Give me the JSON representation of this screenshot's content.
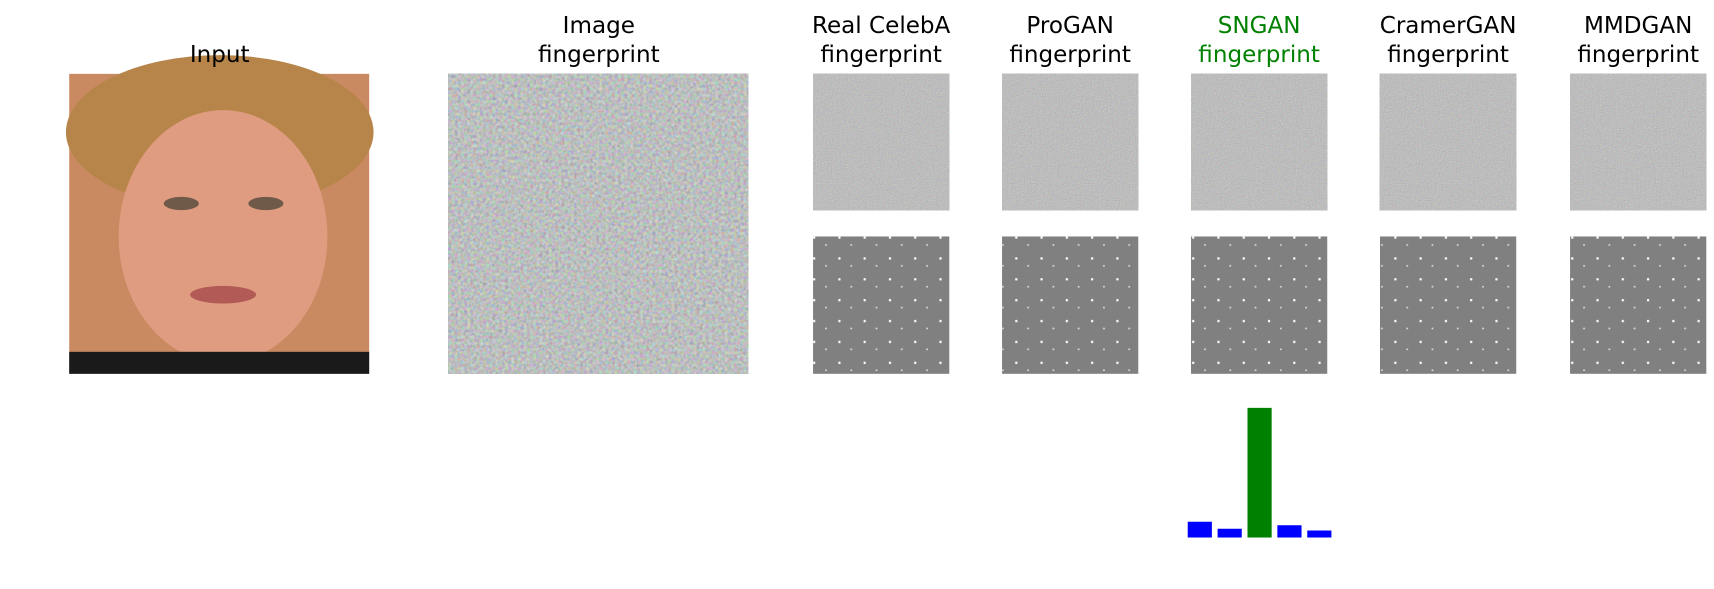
{
  "columns": [
    {
      "title": [
        "Input"
      ],
      "color": "#000000"
    },
    {
      "title": [
        "Image",
        "fingerprint"
      ],
      "color": "#000000"
    },
    {
      "title": [
        "Real CelebA",
        "fingerprint"
      ],
      "color": "#000000"
    },
    {
      "title": [
        "ProGAN",
        "fingerprint"
      ],
      "color": "#000000"
    },
    {
      "title": [
        "SNGAN",
        "fingerprint"
      ],
      "color": "#008000"
    },
    {
      "title": [
        "CramerGAN",
        "fingerprint"
      ],
      "color": "#000000"
    },
    {
      "title": [
        "MMDGAN",
        "fingerprint"
      ],
      "color": "#000000"
    }
  ],
  "chart_data": {
    "type": "bar",
    "categories": [
      null,
      null,
      null,
      null,
      null
    ],
    "values": [
      0.09,
      0.05,
      0.74,
      0.07,
      0.04
    ],
    "colors": [
      "#0000ff",
      "#0000ff",
      "#008000",
      "#0000ff",
      "#0000ff"
    ]
  }
}
